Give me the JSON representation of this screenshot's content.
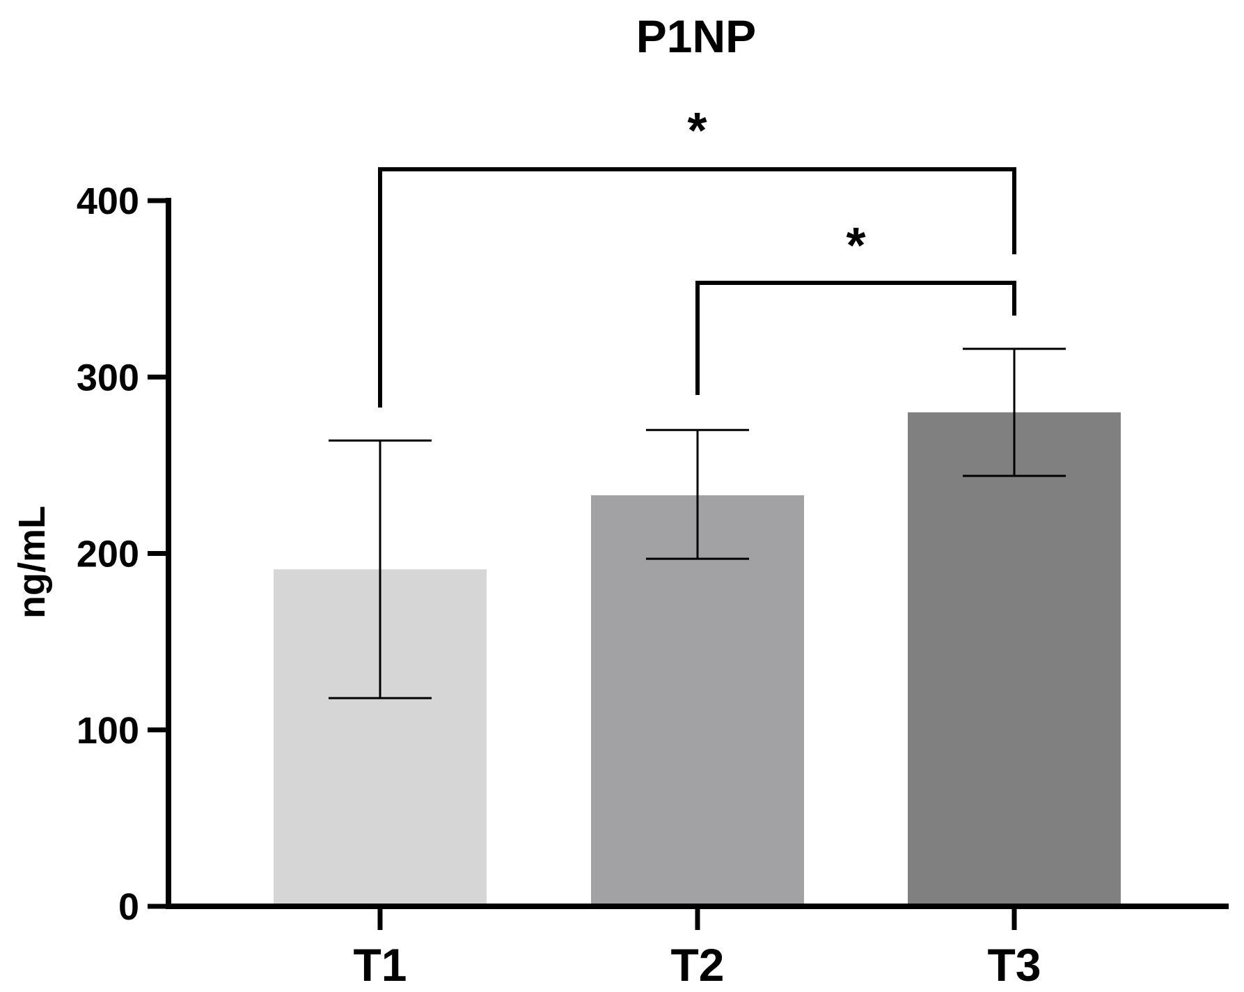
{
  "chart_data": {
    "type": "bar",
    "title": "P1NP",
    "ylabel": "ng/mL",
    "xlabel": "",
    "categories": [
      "T1",
      "T2",
      "T3"
    ],
    "values": [
      191,
      233,
      280
    ],
    "error_bars": [
      {
        "low": 118,
        "high": 264
      },
      {
        "low": 197,
        "high": 270
      },
      {
        "low": 244,
        "high": 316
      }
    ],
    "ylim": [
      0,
      400
    ],
    "yticks": [
      0,
      100,
      200,
      300,
      400
    ],
    "ytick_labels": [
      "0",
      "100",
      "200",
      "300",
      "400"
    ],
    "bar_colors": [
      "#d6d6d6",
      "#a2a2a5",
      "#808080"
    ],
    "grid": false,
    "legend": "none",
    "significance": [
      {
        "from": "T1",
        "to": "T3",
        "label": "*"
      },
      {
        "from": "T2",
        "to": "T3",
        "label": "*"
      }
    ]
  }
}
